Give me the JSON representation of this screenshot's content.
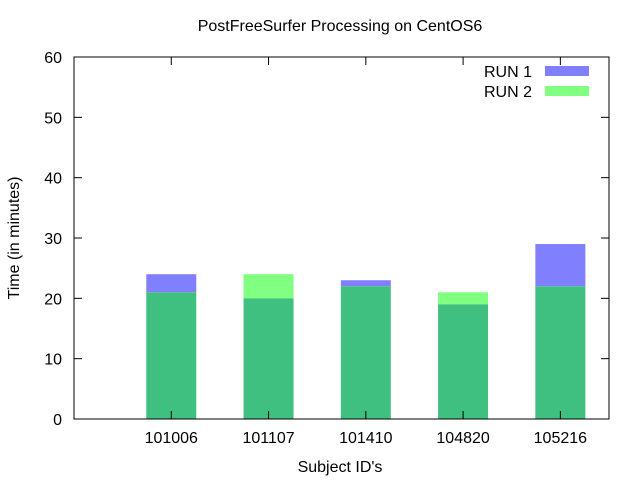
{
  "chart_data": {
    "type": "bar",
    "title": "PostFreeSurfer Processing on CentOS6",
    "xlabel": "Subject ID's",
    "ylabel": "Time (in minutes)",
    "categories": [
      "101006",
      "101107",
      "101410",
      "104820",
      "105216"
    ],
    "series": [
      {
        "name": "RUN 1",
        "color": "#8080ff",
        "values": [
          24,
          20,
          23,
          19,
          29
        ]
      },
      {
        "name": "RUN 2",
        "color": "#80ff80",
        "values": [
          21,
          24,
          22,
          21,
          22
        ]
      }
    ],
    "overlap_color": "#40c080",
    "ylim": [
      0,
      60
    ],
    "yticks": [
      0,
      10,
      20,
      30,
      40,
      50,
      60
    ],
    "grid": false,
    "legend_position": "top-right"
  }
}
